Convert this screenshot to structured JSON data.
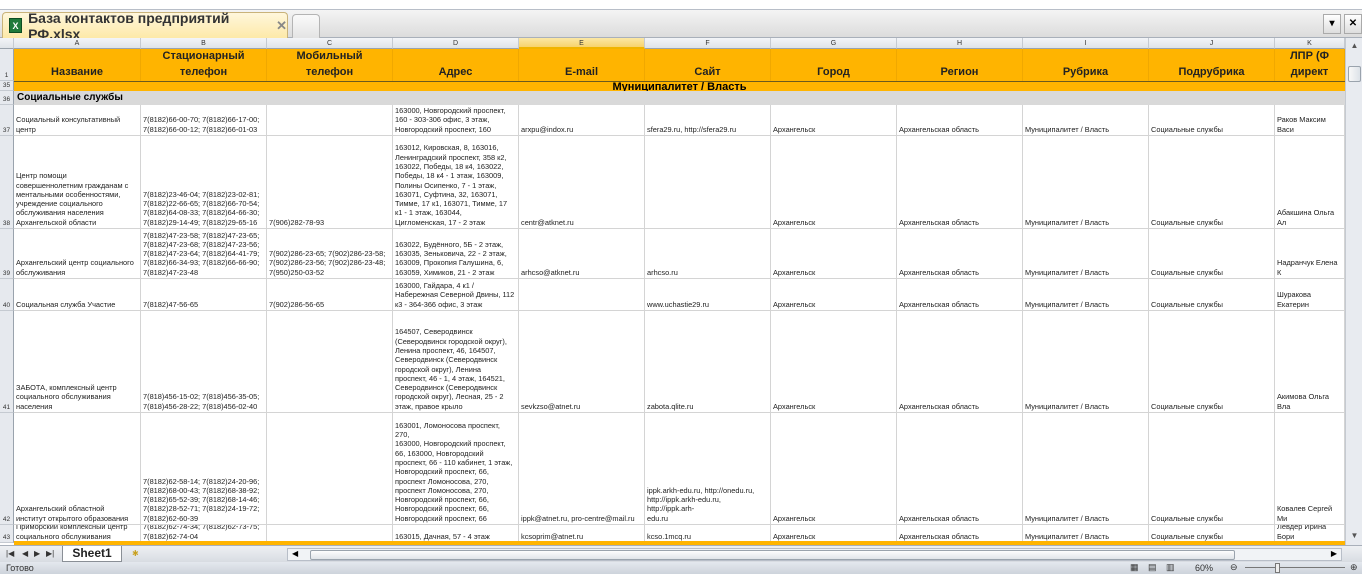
{
  "window": {
    "title": "База контактов предприятий РФ.xlsx",
    "close_icon": "close-icon"
  },
  "columns": [
    "A",
    "B",
    "C",
    "D",
    "E",
    "F",
    "G",
    "H",
    "I",
    "J",
    "K"
  ],
  "header": {
    "row_number": "1",
    "cells": [
      "Название",
      "Стационарный\nтелефон",
      "Мобильный\nтелефон",
      "Адрес",
      "E-mail",
      "Сайт",
      "Город",
      "Регион",
      "Рубрика",
      "Подрубрика",
      "ЛПР (Ф\nдирект"
    ]
  },
  "category_band": {
    "row_number": "35",
    "label": "Муниципалитет / Власть"
  },
  "subcategory_band": {
    "row_number": "36",
    "label": "Социальные службы"
  },
  "rows": [
    {
      "n": "37",
      "cells": [
        "Социальный консультативный\nцентр",
        "7(8182)66-00-70; 7(8182)66-17-00;\n7(8182)66-00-12; 7(8182)66-01-03",
        "",
        "163000, Новгородский проспект,\n160 - 303-306 офис, 3 этаж,\nНовгородский проспект, 160",
        "arxpu@indox.ru",
        "sfera29.ru, http://sfera29.ru",
        "Архангельск",
        "Архангельская область",
        "Муниципалитет / Власть",
        "Социальные службы",
        "Раков Максим Васи"
      ]
    },
    {
      "n": "38",
      "cells": [
        "Центр помощи\nсовершеннолетним гражданам с\nментальными особенностями,\nучреждение социального\nобслуживания населения\nАрхангельской области",
        "7(8182)23-46-04; 7(8182)23-02-81;\n7(8182)22-66-65; 7(8182)66-70-54;\n7(8182)64-08-33; 7(8182)64-66-30;\n7(8182)29-14-49; 7(8182)29-65-16",
        "7(906)282-78-93",
        "163012, Кировская, 8, 163016,\nЛенинградский проспект, 358 к2,\n163022, Победы, 18 к4, 163022,\nПобеды, 18 к4 - 1 этаж, 163009,\nПолины Осипенко, 7 - 1 этаж,\n163071, Суфтина, 32, 163071,\nТимме, 17 к1, 163071, Тимме, 17\nк1 - 1 этаж, 163044,\nЦигломенская, 17 - 2 этаж",
        "centr@atknet.ru",
        "",
        "Архангельск",
        "Архангельская область",
        "Муниципалитет / Власть",
        "Социальные службы",
        "Абакшина Ольга Ал"
      ]
    },
    {
      "n": "39",
      "cells": [
        "Архангельский центр социального\nобслуживания",
        "7(8182)47-23-58; 7(8182)47-23-65;\n7(8182)47-23-68; 7(8182)47-23-56;\n7(8182)47-23-64; 7(8182)64-41-79;\n7(8182)66-34-93; 7(8182)66-66-90;\n7(8182)47-23-48",
        "7(902)286-23-65; 7(902)286-23-58;\n7(902)286-23-56; 7(902)286-23-48;\n7(950)250-03-52",
        "163022, Будённого, 5Б - 2 этаж,\n163035, Зеньковича, 22 - 2 этаж,\n163009, Прокопия Галушина, 6,\n163059, Химиков, 21 - 2 этаж",
        "arhcso@atknet.ru",
        "arhcso.ru",
        "Архангельск",
        "Архангельская область",
        "Муниципалитет / Власть",
        "Социальные службы",
        "Надранчук Елена К"
      ]
    },
    {
      "n": "40",
      "cells": [
        "Социальная служба Участие",
        "7(8182)47-56-65",
        "7(902)286-56-65",
        "163000, Гайдара, 4 к1 /\nНабережная Северной Двины, 112\nк3 - 364-366 офис, 3 этаж",
        "",
        "www.uchastie29.ru",
        "Архангельск",
        "Архангельская область",
        "Муниципалитет / Власть",
        "Социальные службы",
        "Шуракова Екатерин"
      ]
    },
    {
      "n": "41",
      "cells": [
        "ЗАБОТА, комплексный центр\nсоциального обслуживания\nнаселения",
        "7(818)456-15-02; 7(818)456-35-05;\n7(818)456-28-22; 7(818)456-02-40",
        "",
        "164507, Северодвинск\n(Северодвинск городской округ),\nЛенина проспект, 46, 164507,\nСеверодвинск (Северодвинск\nгородской округ), Ленина\nпроспект, 46 - 1, 4 этаж, 164521,\nСеверодвинск (Северодвинск\nгородской округ), Лесная, 25 - 2\nэтаж, правое крыло",
        "sevkzso@atnet.ru",
        "zabota.qlite.ru",
        "Архангельск",
        "Архангельская область",
        "Муниципалитет / Власть",
        "Социальные службы",
        "Акимова Ольга Вла"
      ]
    },
    {
      "n": "42",
      "cells": [
        "Архангельский областной\nинститут открытого образования",
        "7(8182)62-58-14; 7(8182)24-20-96;\n7(8182)68-00-43; 7(8182)68-38-92;\n7(8182)65-52-39; 7(8182)68-14-46;\n7(8182)28-52-71; 7(8182)24-19-72;\n7(8182)62-60-39",
        "",
        "163001, Ломоносова проспект, 270,\n163000, Новгородский проспект,\n66, 163000, Новгородский\nпроспект, 66 - 110 кабинет, 1 этаж,\nНовгородский проспект, 66,\nпроспект Ломоносова, 270,\nпроспект Ломоносова, 270,\nНовгородский проспект, 66,\nНовгородский проспект, 66,\nНовгородский проспект, 66",
        "ippk@atnet.ru, pro-centre@mail.ru",
        "ippk.arkh-edu.ru, http://onedu.ru,\nhttp://ippk.arkh-edu.ru, http://ippk.arh-\nedu.ru",
        "Архангельск",
        "Архангельская область",
        "Муниципалитет / Власть",
        "Социальные службы",
        "Ковалев Сергей Ми"
      ]
    },
    {
      "n": "43",
      "cells": [
        "Приморский комплексный центр\nсоциального обслуживания",
        "7(8182)62-74-34; 7(8182)62-73-75;\n7(8182)62-74-04",
        "",
        "163015, Дачная, 57 - 4 этаж",
        "kcsoprim@atnet.ru",
        "kcso.1mcq.ru",
        "Архангельск",
        "Архангельская область",
        "Муниципалитет / Власть",
        "Социальные службы",
        "Левдер Ирина Бори"
      ]
    }
  ],
  "sheet_tabs": [
    "Sheet1"
  ],
  "status": {
    "text": "Готово",
    "zoom": "60%"
  },
  "colors": {
    "header": "#ffb400",
    "subband": "#d9d9d9"
  }
}
